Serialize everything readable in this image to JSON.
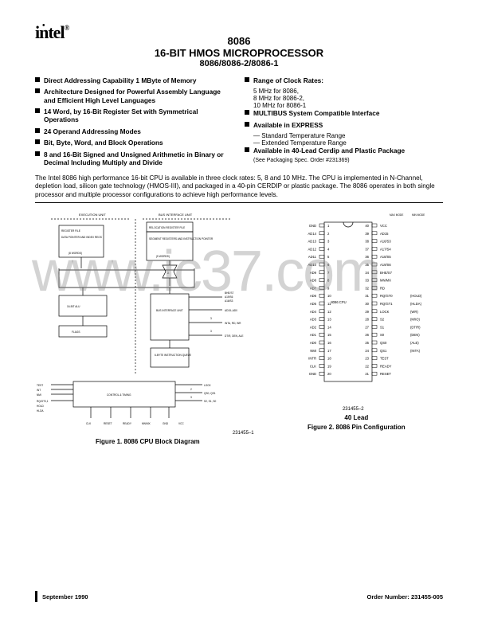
{
  "logo": "intel",
  "title": {
    "num": "8086",
    "main": "16-BIT HMOS MICROPROCESSOR",
    "sub": "8086/8086-2/8086-1"
  },
  "features_left": [
    {
      "text": "Direct Addressing Capability 1 MByte of Memory"
    },
    {
      "text": "Architecture Designed for Powerful Assembly Language and Efficient High Level Languages"
    },
    {
      "text": "14 Word, by 16-Bit Register Set with Symmetrical Operations"
    },
    {
      "text": "24 Operand Addressing Modes"
    },
    {
      "text": "Bit, Byte, Word, and Block Operations"
    },
    {
      "text": "8 and 16-Bit Signed and Unsigned Arithmetic in Binary or Decimal Including Multiply and Divide"
    }
  ],
  "features_right": [
    {
      "text": "Range of Clock Rates:",
      "subs": [
        "5 MHz for 8086,",
        "8 MHz for 8086-2,",
        "10 MHz for 8086-1"
      ]
    },
    {
      "text": "MULTIBUS System Compatible Interface"
    },
    {
      "text": "Available in EXPRESS",
      "subs": [
        "— Standard Temperature Range",
        "— Extended Temperature Range"
      ]
    },
    {
      "text": "Available in 40-Lead Cerdip and Plastic Package",
      "note": "(See Packaging Spec. Order #231369)"
    }
  ],
  "body": "The Intel 8086 high performance 16-bit CPU is available in three clock rates: 5, 8 and 10 MHz. The CPU is implemented in N-Channel, depletion load, silicon gate technology (HMOS-III), and packaged in a 40-pin CERDIP or plastic package. The 8086 operates in both single processor and multiple processor configurations to achieve high performance levels.",
  "watermark": "www.ic37.com",
  "fig1": {
    "caption": "Figure 1. 8086 CPU Block Diagram",
    "num": "231455–1",
    "labels": {
      "exec": "EXECUTION UNIT",
      "bus": "BUS INTERFACE UNIT",
      "reloc": "RELOCATION REGISTER FILE",
      "regfile": "REGISTER FILE",
      "segreg": "SEGMENT REGISTERS AND INSTRUCTION POINTER",
      "data": "DATA POINTER AND INDEX REGS",
      "words": "(8 WORDS)",
      "words5": "(5 WORDS)",
      "alu": "16-BIT ALU",
      "flags": "FLAGS",
      "biu": "BUS INTERFACE UNIT",
      "queue": "6-BYTE INSTRUCTION QUEUE",
      "control": "CONTROL & TIMING",
      "bhe": "BHE/S7",
      "a19": "A19/S6",
      "a16": "A16/S3",
      "ad15": "AD15–AD0",
      "inta": "INTA, RD, WR",
      "dtr": "DT/R, DEN, ALE",
      "test": "TEST",
      "lock": "LOCK",
      "int": "INT",
      "nmi": "NMI",
      "rqgt": "RQ/GT0,1",
      "hold": "HOLD",
      "hlda": "HLDA",
      "qs": "QS0, QS1",
      "s": "S2, S1, S0",
      "clk": "CLK",
      "reset": "RESET",
      "ready": "READY",
      "mnmx": "MN/MX",
      "gnd": "GND",
      "vcc": "VCC",
      "three": "3",
      "two": "2"
    }
  },
  "fig2": {
    "caption": "Figure 2. 8086 Pin Configuration",
    "num": "231455–2",
    "lead": "40 Lead",
    "mode": {
      "max": "MAX MODE",
      "min": "MIN MODE"
    },
    "chip": "8086 CPU",
    "pins_left": [
      "GND",
      "AD14",
      "AD13",
      "AD12",
      "AD11",
      "AD10",
      "AD9",
      "AD8",
      "AD7",
      "AD6",
      "AD5",
      "AD4",
      "AD3",
      "AD2",
      "AD1",
      "AD0",
      "NMI",
      "INTR",
      "CLK",
      "GND"
    ],
    "pins_right": [
      {
        "l": "VCC"
      },
      {
        "l": "AD15"
      },
      {
        "l": "A16/S3"
      },
      {
        "l": "A17/S4"
      },
      {
        "l": "A18/S5"
      },
      {
        "l": "A19/S6"
      },
      {
        "l": "BHE/S7"
      },
      {
        "l": "MN/MX"
      },
      {
        "l": "RD"
      },
      {
        "l": "RQ/GT0",
        "p": "(HOLD)"
      },
      {
        "l": "RQ/GT1",
        "p": "(HLDA)"
      },
      {
        "l": "LOCK",
        "p": "(WR)"
      },
      {
        "l": "S2",
        "p": "(M/IO)"
      },
      {
        "l": "S1",
        "p": "(DT/R)"
      },
      {
        "l": "S0",
        "p": "(DEN)"
      },
      {
        "l": "QS0",
        "p": "(ALE)"
      },
      {
        "l": "QS1",
        "p": "(INTA)"
      },
      {
        "l": "TEST"
      },
      {
        "l": "READY"
      },
      {
        "l": "RESET"
      }
    ]
  },
  "footer": {
    "left": "September 1990",
    "right": "Order Number: 231455-005"
  },
  "colors": {
    "text": "#000000",
    "bg": "#ffffff",
    "watermark": "rgba(130,130,130,0.35)",
    "line": "#000000"
  }
}
